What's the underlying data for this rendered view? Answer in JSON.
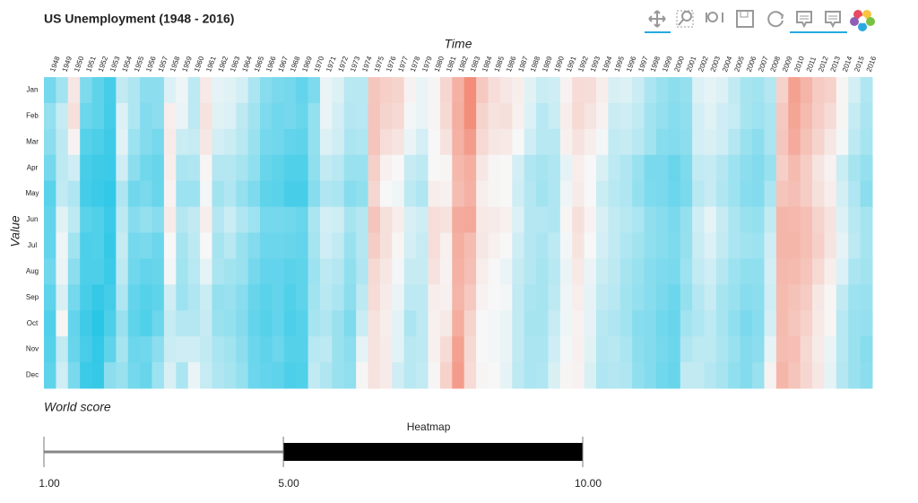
{
  "chart_data": [
    {
      "type": "heatmap",
      "title": "US Unemployment (1948 - 2016)",
      "x_label": "Time",
      "y_label": "Value",
      "categories": [
        "1948",
        "1949",
        "1950",
        "1951",
        "1952",
        "1953",
        "1954",
        "1955",
        "1956",
        "1957",
        "1958",
        "1959",
        "1960",
        "1961",
        "1962",
        "1963",
        "1964",
        "1965",
        "1966",
        "1967",
        "1968",
        "1969",
        "1970",
        "1971",
        "1972",
        "1973",
        "1974",
        "1975",
        "1976",
        "1977",
        "1978",
        "1979",
        "1980",
        "1981",
        "1982",
        "1983",
        "1984",
        "1985",
        "1986",
        "1987",
        "1988",
        "1989",
        "1990",
        "1991",
        "1992",
        "1993",
        "1994",
        "1995",
        "1996",
        "1997",
        "1998",
        "1999",
        "2000",
        "2001",
        "2002",
        "2003",
        "2004",
        "2005",
        "2006",
        "2007",
        "2008",
        "2009",
        "2010",
        "2011",
        "2012",
        "2013",
        "2014",
        "2015",
        "2016"
      ],
      "rows": [
        "Jan",
        "Feb",
        "Mar",
        "Apr",
        "May",
        "Jun",
        "Jul",
        "Aug",
        "Sep",
        "Oct",
        "Nov",
        "Dec"
      ],
      "colors": [
        "#29c6e6",
        "#f7f7f7",
        "#f38c78"
      ],
      "color_domain": [
        2.3,
        6.9,
        11.5
      ],
      "values": [
        [
          4.0,
          4.7,
          4.5,
          4.0,
          3.4,
          3.6,
          3.6,
          3.9,
          3.5,
          3.2,
          3.3,
          3.5
        ],
        [
          5.0,
          5.8,
          5.6,
          5.6,
          5.7,
          6.4,
          6.7,
          6.6,
          6.2,
          7.0,
          5.7,
          6.0
        ],
        [
          7.6,
          7.9,
          7.1,
          6.0,
          5.3,
          5.6,
          5.0,
          4.5,
          4.0,
          3.6,
          3.7,
          4.1
        ],
        [
          4.2,
          3.8,
          3.3,
          3.0,
          2.9,
          3.4,
          3.1,
          3.1,
          3.0,
          2.8,
          3.0,
          2.7
        ],
        [
          3.5,
          3.5,
          3.1,
          2.8,
          2.7,
          3.2,
          3.2,
          3.1,
          2.6,
          2.3,
          2.5,
          2.6
        ],
        [
          3.0,
          2.9,
          2.8,
          2.7,
          2.5,
          2.7,
          2.6,
          2.7,
          2.9,
          3.1,
          3.5,
          4.5
        ],
        [
          5.7,
          6.3,
          6.4,
          6.0,
          5.3,
          5.6,
          5.8,
          5.6,
          5.3,
          4.8,
          5.1,
          4.8
        ],
        [
          5.3,
          5.3,
          4.9,
          4.5,
          3.9,
          4.4,
          4.0,
          3.9,
          3.6,
          3.5,
          3.8,
          4.0
        ],
        [
          4.5,
          4.3,
          4.3,
          3.9,
          4.1,
          4.7,
          4.1,
          3.6,
          3.3,
          3.2,
          3.9,
          3.7
        ],
        [
          4.5,
          4.5,
          4.0,
          3.7,
          3.7,
          4.4,
          3.8,
          3.7,
          3.5,
          3.8,
          4.5,
          4.9
        ],
        [
          6.3,
          7.3,
          7.4,
          7.3,
          7.1,
          7.4,
          6.9,
          6.8,
          6.0,
          5.8,
          5.9,
          6.2
        ],
        [
          6.7,
          6.6,
          5.9,
          5.2,
          4.9,
          5.4,
          5.1,
          5.0,
          4.9,
          5.4,
          6.0,
          5.2
        ],
        [
          5.6,
          5.6,
          5.8,
          5.3,
          4.9,
          5.7,
          5.6,
          5.5,
          5.3,
          5.4,
          6.0,
          6.6
        ],
        [
          7.5,
          7.8,
          7.6,
          7.0,
          6.8,
          7.3,
          6.9,
          6.5,
          5.9,
          5.8,
          5.7,
          5.8
        ],
        [
          6.5,
          6.4,
          6.1,
          5.4,
          5.0,
          5.4,
          5.1,
          5.2,
          4.7,
          4.8,
          5.2,
          5.3
        ],
        [
          6.4,
          6.3,
          5.9,
          5.4,
          5.3,
          5.9,
          5.5,
          5.0,
          4.8,
          4.7,
          5.0,
          5.1
        ],
        [
          6.1,
          5.6,
          5.5,
          5.1,
          4.7,
          5.3,
          4.8,
          4.8,
          4.4,
          4.3,
          4.5,
          4.7
        ],
        [
          5.2,
          5.0,
          4.8,
          4.6,
          4.2,
          4.9,
          4.3,
          4.0,
          3.7,
          3.6,
          3.8,
          3.8
        ],
        [
          4.4,
          4.2,
          4.0,
          3.7,
          3.5,
          4.0,
          3.8,
          3.6,
          3.4,
          3.3,
          3.5,
          3.6
        ],
        [
          4.1,
          3.9,
          3.9,
          3.5,
          3.4,
          4.0,
          3.8,
          3.6,
          3.6,
          3.6,
          3.8,
          3.5
        ],
        [
          4.0,
          4.0,
          3.6,
          3.2,
          3.0,
          3.9,
          3.7,
          3.4,
          3.2,
          3.1,
          3.3,
          3.1
        ],
        [
          3.6,
          3.7,
          3.5,
          3.2,
          3.0,
          3.7,
          3.6,
          3.5,
          3.5,
          3.3,
          3.3,
          3.2
        ],
        [
          4.2,
          4.7,
          4.7,
          4.6,
          4.4,
          5.2,
          5.1,
          4.9,
          5.0,
          5.1,
          5.5,
          5.7
        ],
        [
          6.6,
          6.6,
          6.3,
          5.7,
          5.3,
          6.1,
          6.0,
          5.6,
          5.5,
          5.3,
          5.6,
          5.3
        ],
        [
          6.3,
          6.1,
          6.0,
          5.5,
          5.2,
          6.0,
          5.7,
          5.4,
          5.2,
          4.8,
          4.8,
          4.8
        ],
        [
          5.5,
          5.4,
          5.2,
          4.8,
          4.4,
          5.1,
          4.8,
          4.6,
          4.5,
          4.2,
          4.5,
          4.6
        ],
        [
          5.5,
          5.5,
          5.3,
          4.8,
          4.6,
          5.4,
          5.4,
          5.3,
          5.6,
          5.9,
          6.5,
          7.0
        ],
        [
          9.0,
          9.1,
          9.1,
          8.6,
          8.3,
          9.1,
          8.7,
          8.2,
          8.1,
          7.8,
          7.8,
          7.8
        ],
        [
          8.6,
          8.4,
          8.0,
          7.2,
          6.9,
          7.9,
          7.9,
          7.6,
          7.4,
          7.3,
          7.4,
          7.4
        ],
        [
          8.4,
          8.2,
          7.7,
          6.9,
          6.7,
          7.3,
          7.0,
          6.8,
          6.6,
          6.4,
          6.4,
          6.0
        ],
        [
          7.1,
          6.8,
          6.6,
          5.8,
          5.6,
          6.2,
          6.1,
          5.8,
          5.6,
          5.2,
          5.5,
          5.5
        ],
        [
          6.6,
          6.6,
          6.1,
          5.6,
          5.3,
          6.0,
          5.8,
          5.8,
          5.6,
          5.6,
          5.6,
          5.7
        ],
        [
          7.0,
          7.0,
          6.9,
          6.9,
          7.3,
          8.0,
          8.0,
          7.8,
          7.3,
          7.2,
          7.2,
          7.0
        ],
        [
          8.3,
          8.2,
          7.8,
          7.0,
          7.2,
          7.8,
          7.2,
          7.1,
          7.2,
          7.5,
          8.1,
          8.5
        ],
        [
          9.9,
          10.0,
          9.9,
          9.6,
          9.4,
          10.2,
          10.0,
          9.9,
          9.8,
          10.1,
          10.6,
          10.8
        ],
        [
          11.5,
          11.4,
          10.8,
          10.0,
          9.9,
          10.3,
          9.4,
          9.3,
          8.9,
          8.4,
          8.2,
          8.1
        ],
        [
          8.9,
          8.4,
          8.2,
          7.6,
          7.3,
          7.5,
          7.6,
          7.3,
          7.1,
          6.9,
          6.9,
          7.0
        ],
        [
          8.0,
          7.8,
          7.6,
          7.0,
          7.0,
          7.4,
          7.2,
          6.9,
          6.9,
          6.8,
          6.8,
          6.9
        ],
        [
          7.6,
          7.9,
          7.5,
          6.9,
          6.9,
          7.2,
          6.9,
          6.6,
          6.8,
          6.6,
          6.6,
          6.5
        ],
        [
          7.3,
          7.2,
          6.9,
          6.1,
          6.0,
          6.3,
          6.0,
          5.8,
          5.7,
          5.7,
          5.7,
          5.6
        ],
        [
          6.4,
          6.3,
          6.0,
          5.3,
          5.4,
          5.4,
          5.4,
          5.4,
          5.2,
          5.1,
          5.2,
          5.2
        ],
        [
          5.9,
          5.5,
          5.5,
          5.1,
          5.0,
          5.4,
          5.2,
          5.1,
          5.1,
          5.1,
          5.2,
          5.3
        ],
        [
          6.0,
          5.9,
          5.5,
          5.3,
          5.3,
          5.3,
          5.6,
          5.5,
          5.6,
          5.8,
          6.0,
          6.2
        ],
        [
          7.1,
          7.3,
          7.2,
          6.5,
          6.7,
          7.0,
          6.8,
          6.6,
          6.7,
          6.7,
          6.8,
          7.0
        ],
        [
          8.1,
          8.2,
          7.8,
          7.3,
          7.4,
          7.9,
          7.7,
          7.5,
          7.3,
          7.1,
          7.2,
          7.1
        ],
        [
          8.0,
          7.7,
          7.3,
          6.9,
          6.9,
          7.1,
          6.9,
          6.6,
          6.5,
          6.5,
          6.4,
          6.2
        ],
        [
          7.3,
          7.1,
          6.8,
          6.2,
          5.9,
          6.2,
          6.1,
          5.9,
          5.7,
          5.5,
          5.4,
          5.3
        ],
        [
          6.2,
          5.9,
          5.7,
          5.6,
          5.5,
          5.7,
          5.7,
          5.6,
          5.5,
          5.3,
          5.5,
          5.4
        ],
        [
          6.3,
          6.0,
          5.8,
          5.3,
          5.3,
          5.5,
          5.3,
          5.1,
          5.0,
          5.0,
          5.2,
          5.3
        ],
        [
          5.9,
          5.7,
          5.5,
          4.8,
          4.7,
          5.2,
          5.0,
          4.8,
          4.7,
          4.4,
          4.5,
          4.6
        ],
        [
          5.2,
          5.0,
          5.0,
          4.1,
          4.2,
          4.6,
          4.6,
          4.4,
          4.4,
          4.3,
          4.3,
          4.3
        ],
        [
          4.8,
          4.7,
          4.4,
          4.1,
          4.1,
          4.4,
          4.4,
          4.2,
          4.1,
          3.9,
          4.0,
          3.9
        ],
        [
          4.5,
          4.4,
          4.3,
          3.7,
          3.8,
          4.1,
          4.2,
          4.1,
          3.8,
          3.7,
          3.8,
          3.7
        ],
        [
          4.7,
          4.6,
          4.5,
          4.2,
          4.1,
          4.7,
          4.7,
          4.9,
          4.7,
          5.0,
          5.3,
          5.7
        ],
        [
          6.3,
          6.1,
          6.1,
          5.7,
          5.5,
          6.0,
          5.9,
          5.7,
          5.4,
          5.3,
          5.6,
          5.7
        ],
        [
          6.5,
          6.4,
          6.2,
          5.8,
          5.8,
          6.5,
          6.3,
          6.0,
          5.8,
          5.6,
          5.6,
          5.4
        ],
        [
          6.3,
          6.0,
          6.0,
          5.4,
          5.3,
          5.8,
          5.7,
          5.4,
          5.1,
          5.1,
          5.2,
          5.1
        ],
        [
          5.7,
          5.8,
          5.4,
          4.9,
          4.9,
          5.2,
          5.2,
          4.9,
          4.8,
          4.6,
          4.8,
          4.6
        ],
        [
          5.1,
          5.1,
          4.8,
          4.5,
          4.4,
          4.8,
          5.0,
          4.6,
          4.4,
          4.1,
          4.3,
          4.3
        ],
        [
          5.0,
          4.9,
          4.5,
          4.3,
          4.3,
          4.7,
          4.9,
          4.6,
          4.5,
          4.4,
          4.5,
          4.8
        ],
        [
          5.4,
          5.2,
          5.2,
          4.8,
          5.2,
          5.7,
          6.0,
          6.1,
          6.0,
          6.1,
          6.5,
          7.1
        ],
        [
          8.5,
          8.9,
          9.0,
          8.6,
          9.1,
          9.7,
          9.7,
          9.6,
          9.5,
          9.5,
          9.4,
          9.7
        ],
        [
          10.6,
          10.4,
          10.2,
          9.5,
          9.3,
          9.6,
          9.7,
          9.5,
          9.2,
          9.0,
          9.3,
          9.1
        ],
        [
          9.8,
          9.5,
          9.2,
          8.7,
          8.7,
          9.3,
          9.3,
          9.1,
          8.8,
          8.5,
          8.2,
          8.3
        ],
        [
          8.8,
          8.7,
          8.4,
          7.7,
          7.9,
          8.4,
          8.6,
          8.2,
          7.6,
          7.5,
          7.4,
          7.6
        ],
        [
          8.5,
          8.1,
          7.6,
          7.1,
          7.3,
          7.8,
          7.7,
          7.3,
          7.0,
          7.0,
          6.6,
          6.5
        ],
        [
          7.0,
          7.0,
          6.8,
          5.9,
          6.1,
          6.3,
          6.5,
          6.3,
          5.7,
          5.5,
          5.5,
          5.4
        ],
        [
          6.1,
          5.8,
          5.6,
          5.1,
          5.3,
          5.5,
          5.6,
          5.2,
          4.9,
          4.8,
          4.8,
          4.8
        ],
        [
          5.3,
          5.2,
          5.1,
          4.7,
          4.5,
          5.1,
          5.1,
          5.0,
          4.8,
          4.7,
          4.4,
          4.5
        ]
      ]
    },
    {
      "type": "range",
      "title": "World score",
      "xlim": [
        1,
        10
      ],
      "xticks": [
        {
          "value": 1,
          "label": "1.00"
        },
        {
          "value": 5,
          "label": "5.00"
        },
        {
          "value": 10,
          "label": "10.00"
        }
      ],
      "series": [
        {
          "name": "Heatmap",
          "color": "#000000",
          "start": 5,
          "end": 10
        }
      ],
      "baseline_color": "#888888"
    }
  ]
}
